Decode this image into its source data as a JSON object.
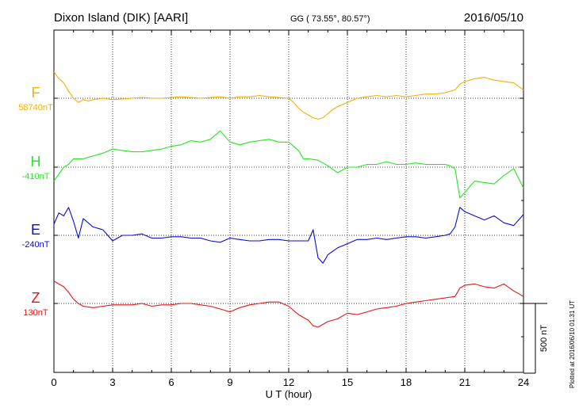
{
  "header": {
    "station": "Dixon Island (DIK)  [AARI]",
    "coords": "GG ( 73.55°,  80.57°)",
    "date": "2016/05/10"
  },
  "footer": {
    "plotted": "Plotted at 2016/06/10 01:31  UT"
  },
  "chart_data": {
    "type": "line",
    "title": "Dixon Island (DIK)  [AARI]",
    "xlabel": "U T (hour)",
    "x_ticks": [
      "0",
      "3",
      "6",
      "9",
      "12",
      "15",
      "18",
      "21",
      "24"
    ],
    "xlim": [
      0,
      24
    ],
    "scale_bar": {
      "label": "500 nT",
      "value_nT": 500
    },
    "grid": true,
    "colors": {
      "F": "#f5b000",
      "H": "#22e81e",
      "E": "#0a0ad8",
      "Z": "#e81414"
    },
    "series": [
      {
        "name": "F",
        "baseline_label": "58740nT",
        "baseline_nT": 58740,
        "x": [
          0,
          0.25,
          0.5,
          0.75,
          1,
          1.25,
          1.5,
          1.75,
          2,
          2.5,
          3,
          3.5,
          4,
          4.5,
          5,
          5.5,
          6,
          6.5,
          7,
          7.5,
          8,
          8.5,
          9,
          9.5,
          10,
          10.5,
          11,
          11.5,
          12,
          12.25,
          12.5,
          12.75,
          13,
          13.25,
          13.5,
          13.75,
          14,
          14.25,
          14.5,
          15,
          15.5,
          16,
          16.5,
          17,
          17.5,
          18,
          18.5,
          19,
          19.5,
          20,
          20.5,
          20.75,
          21,
          21.5,
          22,
          22.5,
          23,
          23.5,
          24
        ],
        "values": [
          190,
          140,
          110,
          50,
          0,
          -30,
          -10,
          -20,
          -10,
          0,
          -10,
          -5,
          0,
          5,
          0,
          0,
          5,
          10,
          5,
          0,
          5,
          10,
          0,
          10,
          10,
          20,
          10,
          5,
          0,
          -30,
          -70,
          -100,
          -120,
          -140,
          -150,
          -140,
          -110,
          -80,
          -60,
          -30,
          0,
          10,
          20,
          10,
          20,
          10,
          20,
          30,
          30,
          40,
          60,
          100,
          120,
          140,
          150,
          130,
          120,
          110,
          60
        ]
      },
      {
        "name": "H",
        "baseline_label": "-410nT",
        "baseline_nT": -410,
        "x": [
          0,
          0.25,
          0.5,
          0.75,
          1,
          1.5,
          2,
          2.5,
          3,
          3.5,
          4,
          4.5,
          5,
          5.5,
          6,
          6.5,
          7,
          7.5,
          8,
          8.5,
          9,
          9.5,
          10,
          10.5,
          11,
          11.5,
          12,
          12.5,
          12.75,
          13,
          13.5,
          14,
          14.5,
          15,
          15.5,
          16,
          16.5,
          17,
          17.5,
          18,
          18.5,
          19,
          19.5,
          20,
          20.25,
          20.5,
          20.75,
          21,
          21.5,
          22,
          22.5,
          23,
          23.5,
          24
        ],
        "values": [
          -100,
          -50,
          0,
          20,
          60,
          60,
          80,
          100,
          130,
          120,
          110,
          110,
          120,
          130,
          150,
          160,
          190,
          180,
          200,
          260,
          180,
          160,
          180,
          190,
          200,
          180,
          180,
          120,
          60,
          60,
          50,
          10,
          -40,
          0,
          0,
          20,
          20,
          40,
          20,
          20,
          30,
          20,
          20,
          20,
          10,
          -10,
          -220,
          -180,
          -100,
          -110,
          -120,
          -60,
          -10,
          -150
        ]
      },
      {
        "name": "E",
        "baseline_label": "-240nT",
        "baseline_nT": -240,
        "x": [
          0,
          0.25,
          0.5,
          0.75,
          1,
          1.25,
          1.5,
          2,
          2.5,
          3,
          3.5,
          4,
          4.5,
          5,
          5.5,
          6,
          6.5,
          7,
          7.5,
          8,
          8.5,
          9,
          9.5,
          10,
          10.5,
          11,
          11.5,
          12,
          12.5,
          13,
          13.25,
          13.5,
          13.75,
          14,
          14.5,
          15,
          15.5,
          16,
          16.5,
          17,
          17.5,
          18,
          18.5,
          19,
          19.5,
          20,
          20.25,
          20.5,
          20.75,
          21,
          21.5,
          22,
          22.5,
          23,
          23.5,
          24
        ],
        "values": [
          80,
          160,
          140,
          200,
          100,
          -20,
          120,
          60,
          40,
          -40,
          0,
          0,
          10,
          -20,
          -20,
          -10,
          -10,
          -20,
          -20,
          -40,
          -50,
          -20,
          -30,
          -40,
          -40,
          -30,
          -30,
          -40,
          -40,
          -40,
          40,
          -160,
          -200,
          -140,
          -90,
          -60,
          -30,
          -30,
          -20,
          -30,
          -20,
          -10,
          -10,
          -20,
          -10,
          0,
          10,
          60,
          200,
          170,
          140,
          110,
          140,
          90,
          70,
          150
        ]
      },
      {
        "name": "Z",
        "baseline_label": "130nT",
        "baseline_nT": 130,
        "x": [
          0,
          0.25,
          0.5,
          0.75,
          1,
          1.25,
          1.5,
          2,
          2.5,
          3,
          3.5,
          4,
          4.5,
          5,
          5.5,
          6,
          6.5,
          7,
          7.5,
          8,
          8.5,
          9,
          9.5,
          10,
          10.5,
          11,
          11.5,
          12,
          12.5,
          13,
          13.25,
          13.5,
          13.75,
          14,
          14.5,
          15,
          15.5,
          16,
          16.5,
          17,
          17.5,
          18,
          18.5,
          19,
          19.5,
          20,
          20.5,
          20.75,
          21,
          21.5,
          22,
          22.5,
          23,
          23.5,
          24
        ],
        "values": [
          160,
          140,
          120,
          80,
          30,
          0,
          -20,
          -30,
          -20,
          -10,
          -10,
          -10,
          0,
          -20,
          -10,
          -10,
          0,
          0,
          -10,
          -20,
          -40,
          -60,
          -30,
          -10,
          0,
          10,
          10,
          -20,
          -80,
          -120,
          -160,
          -170,
          -150,
          -130,
          -110,
          -70,
          -80,
          -60,
          -40,
          -30,
          -20,
          0,
          10,
          20,
          30,
          40,
          50,
          110,
          130,
          140,
          120,
          110,
          140,
          90,
          50
        ]
      }
    ]
  }
}
